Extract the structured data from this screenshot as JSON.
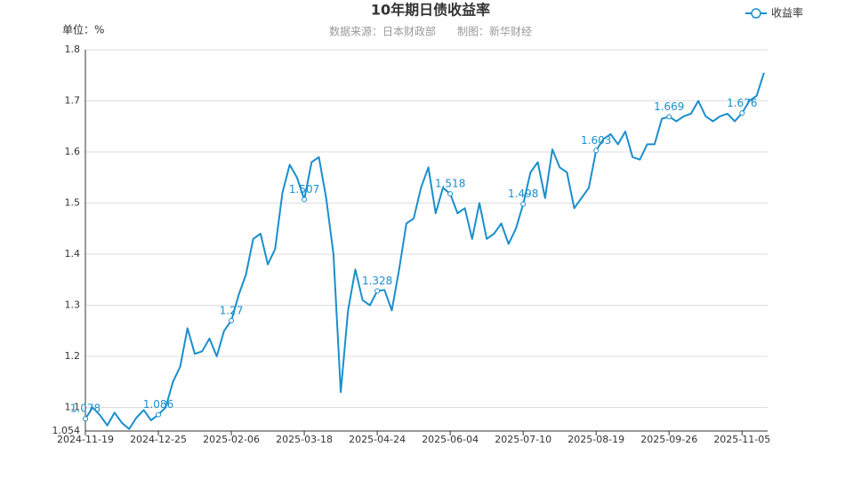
{
  "chart_data": {
    "type": "line",
    "title": "10年期日债收益率",
    "subtitle": "数据来源：日本财政部　　制图：新华财经",
    "y_axis_label": "单位：%",
    "categories": [
      "2024-11-19",
      null,
      null,
      null,
      null,
      null,
      null,
      null,
      null,
      null,
      "2024-12-25",
      null,
      null,
      null,
      null,
      null,
      null,
      null,
      null,
      null,
      "2025-02-06",
      null,
      null,
      null,
      null,
      null,
      null,
      null,
      null,
      null,
      "2025-03-18",
      null,
      null,
      null,
      null,
      null,
      null,
      null,
      null,
      null,
      "2025-04-24",
      null,
      null,
      null,
      null,
      null,
      null,
      null,
      null,
      null,
      "2025-06-04",
      null,
      null,
      null,
      null,
      null,
      null,
      null,
      null,
      null,
      "2025-07-10",
      null,
      null,
      null,
      null,
      null,
      null,
      null,
      null,
      null,
      "2025-08-19",
      null,
      null,
      null,
      null,
      null,
      null,
      null,
      null,
      null,
      "2025-09-26",
      null,
      null,
      null,
      null,
      null,
      null,
      null,
      null,
      null,
      "2025-11-05",
      null,
      null,
      null
    ],
    "series": [
      {
        "name": "收益率",
        "color": "#1a8fcd",
        "values": [
          1.078,
          1.1,
          1.085,
          1.065,
          1.09,
          1.07,
          1.058,
          1.08,
          1.095,
          1.075,
          1.086,
          1.1,
          1.15,
          1.18,
          1.255,
          1.205,
          1.21,
          1.235,
          1.2,
          1.25,
          1.27,
          1.32,
          1.36,
          1.43,
          1.44,
          1.38,
          1.41,
          1.52,
          1.575,
          1.55,
          1.507,
          1.58,
          1.59,
          1.51,
          1.4,
          1.13,
          1.29,
          1.37,
          1.31,
          1.3,
          1.328,
          1.33,
          1.29,
          1.37,
          1.46,
          1.47,
          1.53,
          1.57,
          1.48,
          1.53,
          1.518,
          1.48,
          1.49,
          1.43,
          1.5,
          1.43,
          1.44,
          1.46,
          1.42,
          1.45,
          1.498,
          1.56,
          1.58,
          1.51,
          1.605,
          1.57,
          1.56,
          1.49,
          1.51,
          1.53,
          1.603,
          1.625,
          1.635,
          1.615,
          1.64,
          1.59,
          1.585,
          1.615,
          1.615,
          1.665,
          1.669,
          1.66,
          1.67,
          1.675,
          1.7,
          1.67,
          1.66,
          1.67,
          1.675,
          1.66,
          1.676,
          1.7,
          1.71,
          1.755
        ],
        "value_labels": [
          "1.078",
          null,
          null,
          null,
          null,
          null,
          null,
          null,
          null,
          null,
          "1.086",
          null,
          null,
          null,
          null,
          null,
          null,
          null,
          null,
          null,
          "1.27",
          null,
          null,
          null,
          null,
          null,
          null,
          null,
          null,
          null,
          "1.507",
          null,
          null,
          null,
          null,
          null,
          null,
          null,
          null,
          null,
          "1.328",
          null,
          null,
          null,
          null,
          null,
          null,
          null,
          null,
          null,
          "1.518",
          null,
          null,
          null,
          null,
          null,
          null,
          null,
          null,
          null,
          "1.498",
          null,
          null,
          null,
          null,
          null,
          null,
          null,
          null,
          null,
          "1.603",
          null,
          null,
          null,
          null,
          null,
          null,
          null,
          null,
          null,
          "1.669",
          null,
          null,
          null,
          null,
          null,
          null,
          null,
          null,
          null,
          "1.676",
          null,
          null,
          null
        ]
      }
    ],
    "ylim": [
      1.054,
      1.8
    ],
    "yticks": [
      1.054,
      1.1,
      1.2,
      1.3,
      1.4,
      1.5,
      1.6,
      1.7,
      1.8
    ],
    "grid": true,
    "legend": "top-right"
  }
}
